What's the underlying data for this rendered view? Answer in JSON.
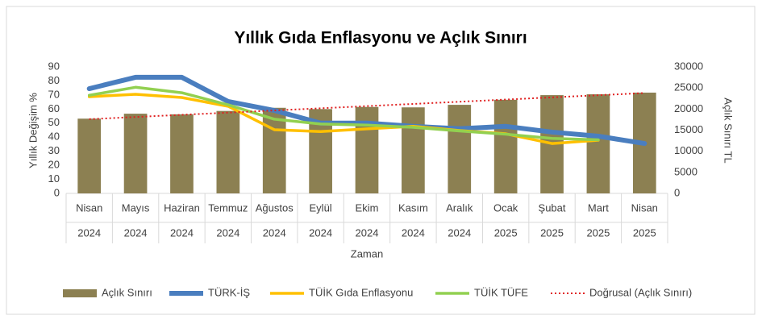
{
  "chart_data": {
    "type": "combo",
    "title": "Yıllık Gıda Enflasyonu ve Açlık Sınırı",
    "y_label": "Yıllık Değişim %",
    "y2_label": "Açlık Sınırı TL",
    "x_label": "Zaman",
    "categories": [
      "Nisan",
      "Mayıs",
      "Haziran",
      "Temmuz",
      "Ağustos",
      "Eylül",
      "Ekim",
      "Kasım",
      "Aralık",
      "Ocak",
      "Şubat",
      "Mart",
      "Nisan"
    ],
    "category_years": [
      "2024",
      "2024",
      "2024",
      "2024",
      "2024",
      "2024",
      "2024",
      "2024",
      "2024",
      "2025",
      "2025",
      "2025",
      "2025"
    ],
    "ylim": [
      0,
      90
    ],
    "yticks": [
      0,
      10,
      20,
      30,
      40,
      50,
      60,
      70,
      80,
      90
    ],
    "y2lim": [
      0,
      30000
    ],
    "y2ticks": [
      0,
      5000,
      10000,
      15000,
      20000,
      25000,
      30000
    ],
    "series": [
      {
        "name": "Açlık Sınırı",
        "type": "bar",
        "axis": "y2",
        "color": "#8c8052",
        "values": [
          17725,
          18900,
          18750,
          19550,
          20300,
          20000,
          20500,
          20400,
          21000,
          22200,
          23300,
          23500,
          23900
        ]
      },
      {
        "name": "TÜRK-İŞ",
        "type": "line",
        "color": "#4a7ebf",
        "values": [
          74.5,
          82.6,
          82.6,
          65.4,
          59,
          50,
          50,
          47.7,
          46,
          47.7,
          43.6,
          40.7,
          35.5
        ]
      },
      {
        "name": "TÜİK Gıda Enflasyonu",
        "type": "line",
        "color": "#ffc000",
        "values": [
          68.8,
          70.5,
          68.2,
          62,
          45.3,
          44,
          45.9,
          47.7,
          44.7,
          42.4,
          35.5,
          37.8,
          null
        ]
      },
      {
        "name": "TÜİK TÜFE",
        "type": "line",
        "color": "#92d050",
        "values": [
          69.8,
          75.5,
          71.6,
          63,
          52.8,
          49.4,
          48.6,
          47,
          44.4,
          42.1,
          39.1,
          38.1,
          null
        ]
      },
      {
        "name": "Doğrusal (Açlık Sınırı)",
        "type": "trend",
        "axis": "y2",
        "color": "#e02020",
        "values": [
          17600,
          18117,
          18633,
          19150,
          19667,
          20183,
          20700,
          21217,
          21733,
          22250,
          22767,
          23283,
          23800
        ]
      }
    ]
  }
}
